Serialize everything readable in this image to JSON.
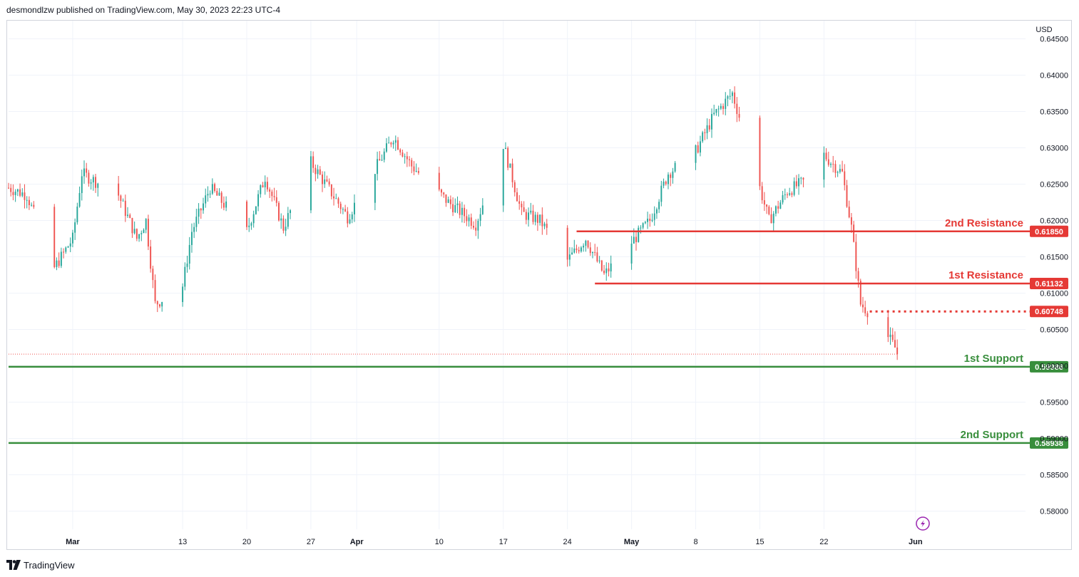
{
  "header": {
    "publisher_text": "desmondlzw published on TradingView.com, May 30, 2023 22:23 UTC-4"
  },
  "footer": {
    "brand": "TradingView"
  },
  "colors": {
    "up": "#26a69a",
    "down": "#ef5350",
    "resistance": "#e53935",
    "support": "#388e3c",
    "grid": "#f0f3fa",
    "axis_text": "#131722",
    "flash_icon": "#9c27b0"
  },
  "chart_data": {
    "type": "candlestick",
    "currency": "USD",
    "ylim": [
      0.5775,
      0.6475
    ],
    "y_ticks": [
      "0.64500",
      "0.64000",
      "0.63500",
      "0.63000",
      "0.62500",
      "0.62000",
      "0.61500",
      "0.61000",
      "0.60500",
      "0.60000",
      "0.59500",
      "0.59000",
      "0.58500",
      "0.58000"
    ],
    "x_range": [
      "2023-02-22",
      "2023-06-13"
    ],
    "x_ticks": [
      {
        "date": "2023-03-01",
        "label": "Mar",
        "bold": true
      },
      {
        "date": "2023-03-13",
        "label": "13",
        "bold": false
      },
      {
        "date": "2023-03-20",
        "label": "20",
        "bold": false
      },
      {
        "date": "2023-03-27",
        "label": "27",
        "bold": false
      },
      {
        "date": "2023-04-01",
        "label": "Apr",
        "bold": true
      },
      {
        "date": "2023-04-10",
        "label": "10",
        "bold": false
      },
      {
        "date": "2023-04-17",
        "label": "17",
        "bold": false
      },
      {
        "date": "2023-04-24",
        "label": "24",
        "bold": false
      },
      {
        "date": "2023-05-01",
        "label": "May",
        "bold": true
      },
      {
        "date": "2023-05-08",
        "label": "8",
        "bold": false
      },
      {
        "date": "2023-05-15",
        "label": "15",
        "bold": false
      },
      {
        "date": "2023-05-22",
        "label": "22",
        "bold": false
      },
      {
        "date": "2023-06-01",
        "label": "Jun",
        "bold": true
      }
    ],
    "price_path": [
      {
        "date": "2023-02-22",
        "price": 0.6245
      },
      {
        "date": "2023-02-24",
        "price": 0.6235
      },
      {
        "date": "2023-02-27",
        "price": 0.6135
      },
      {
        "date": "2023-03-01",
        "price": 0.6175
      },
      {
        "date": "2023-03-02",
        "price": 0.6265
      },
      {
        "date": "2023-03-06",
        "price": 0.6235
      },
      {
        "date": "2023-03-08",
        "price": 0.6175
      },
      {
        "date": "2023-03-09",
        "price": 0.62
      },
      {
        "date": "2023-03-10",
        "price": 0.6085
      },
      {
        "date": "2023-03-13",
        "price": 0.611
      },
      {
        "date": "2023-03-14",
        "price": 0.6185
      },
      {
        "date": "2023-03-16",
        "price": 0.6245
      },
      {
        "date": "2023-03-20",
        "price": 0.6185
      },
      {
        "date": "2023-03-22",
        "price": 0.626
      },
      {
        "date": "2023-03-24",
        "price": 0.619
      },
      {
        "date": "2023-03-27",
        "price": 0.628
      },
      {
        "date": "2023-03-31",
        "price": 0.6205
      },
      {
        "date": "2023-04-03",
        "price": 0.627
      },
      {
        "date": "2023-04-05",
        "price": 0.6315
      },
      {
        "date": "2023-04-07",
        "price": 0.6275
      },
      {
        "date": "2023-04-11",
        "price": 0.6225
      },
      {
        "date": "2023-04-14",
        "price": 0.6195
      },
      {
        "date": "2023-04-17",
        "price": 0.6305
      },
      {
        "date": "2023-04-19",
        "price": 0.621
      },
      {
        "date": "2023-04-21",
        "price": 0.62
      },
      {
        "date": "2023-04-24",
        "price": 0.6145
      },
      {
        "date": "2023-04-26",
        "price": 0.6175
      },
      {
        "date": "2023-04-28",
        "price": 0.6125
      },
      {
        "date": "2023-05-01",
        "price": 0.617
      },
      {
        "date": "2023-05-03",
        "price": 0.62
      },
      {
        "date": "2023-05-05",
        "price": 0.6265
      },
      {
        "date": "2023-05-08",
        "price": 0.6295
      },
      {
        "date": "2023-05-10",
        "price": 0.6345
      },
      {
        "date": "2023-05-12",
        "price": 0.6375
      },
      {
        "date": "2023-05-14",
        "price": 0.629
      },
      {
        "date": "2023-05-16",
        "price": 0.62
      },
      {
        "date": "2023-05-18",
        "price": 0.624
      },
      {
        "date": "2023-05-20",
        "price": 0.6255
      },
      {
        "date": "2023-05-22",
        "price": 0.629
      },
      {
        "date": "2023-05-24",
        "price": 0.6265
      },
      {
        "date": "2023-05-25",
        "price": 0.619
      },
      {
        "date": "2023-05-26",
        "price": 0.6085
      },
      {
        "date": "2023-05-28",
        "price": 0.606
      },
      {
        "date": "2023-05-30",
        "price": 0.602
      }
    ],
    "levels": [
      {
        "name": "2nd Resistance",
        "value": 0.6185,
        "tag": "0.61850",
        "kind": "resistance",
        "start": "2023-04-25",
        "style": "solid"
      },
      {
        "name": "1st Resistance",
        "value": 0.61132,
        "tag": "0.61132",
        "kind": "resistance",
        "start": "2023-04-27",
        "style": "solid"
      },
      {
        "name": "",
        "value": 0.60748,
        "tag": "0.60748",
        "kind": "resistance",
        "start": "2023-05-27",
        "style": "dotted"
      },
      {
        "name": "1st Support",
        "value": 0.59986,
        "tag": "0.59986",
        "kind": "support",
        "start": "2023-02-22",
        "style": "solid"
      },
      {
        "name": "2nd Support",
        "value": 0.58938,
        "tag": "0.58938",
        "kind": "support",
        "start": "2023-02-22",
        "style": "solid"
      }
    ],
    "last_price": 0.6016
  }
}
